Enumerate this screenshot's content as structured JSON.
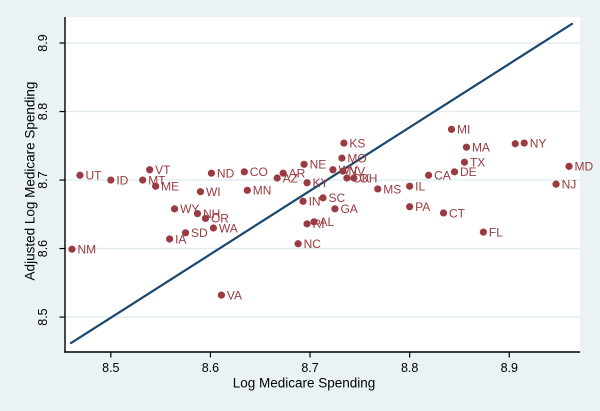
{
  "figure": {
    "background": "#eaf2f3",
    "plot_background": "#ffffff"
  },
  "chart_data": {
    "type": "scatter",
    "title": "",
    "xlabel": "Log Medicare Spending",
    "ylabel": "Adjusted Log Medicare Spending",
    "xlim": [
      8.454,
      8.971
    ],
    "ylim": [
      8.449,
      8.938
    ],
    "xticks": [
      8.5,
      8.6,
      8.7,
      8.8,
      8.9
    ],
    "yticks": [
      8.5,
      8.6,
      8.7,
      8.8,
      8.9
    ],
    "grid": "horizontal",
    "legend": "none",
    "marker_color": "#9a3b41",
    "line_color": "#1a476f",
    "grid_color": "#e1edf2",
    "axis_color": "#000000",
    "reference_line": {
      "name": "45-degree line",
      "x1": 8.46,
      "y1": 8.462,
      "x2": 8.963,
      "y2": 8.928
    },
    "points": [
      {
        "label": "UT",
        "x": 8.469,
        "y": 8.707
      },
      {
        "label": "NM",
        "x": 8.461,
        "y": 8.599
      },
      {
        "label": "ID",
        "x": 8.5,
        "y": 8.7
      },
      {
        "label": "VT",
        "x": 8.539,
        "y": 8.715
      },
      {
        "label": "MT",
        "x": 8.532,
        "y": 8.7
      },
      {
        "label": "ME",
        "x": 8.545,
        "y": 8.691
      },
      {
        "label": "WY",
        "x": 8.564,
        "y": 8.658
      },
      {
        "label": "NH",
        "x": 8.587,
        "y": 8.651
      },
      {
        "label": "OR",
        "x": 8.595,
        "y": 8.644
      },
      {
        "label": "WA",
        "x": 8.603,
        "y": 8.63
      },
      {
        "label": "SD",
        "x": 8.575,
        "y": 8.623
      },
      {
        "label": "IA",
        "x": 8.559,
        "y": 8.614
      },
      {
        "label": "VA",
        "x": 8.611,
        "y": 8.532
      },
      {
        "label": "ND",
        "x": 8.601,
        "y": 8.71
      },
      {
        "label": "CO",
        "x": 8.634,
        "y": 8.712
      },
      {
        "label": "WI",
        "x": 8.59,
        "y": 8.683
      },
      {
        "label": "MN",
        "x": 8.637,
        "y": 8.685
      },
      {
        "label": "AZ",
        "x": 8.667,
        "y": 8.703
      },
      {
        "label": "AR",
        "x": 8.673,
        "y": 8.71
      },
      {
        "label": "NC",
        "x": 8.688,
        "y": 8.607
      },
      {
        "label": "RI",
        "x": 8.697,
        "y": 8.636
      },
      {
        "label": "AL",
        "x": 8.704,
        "y": 8.639
      },
      {
        "label": "IN",
        "x": 8.693,
        "y": 8.669
      },
      {
        "label": "SC",
        "x": 8.713,
        "y": 8.674
      },
      {
        "label": "GA",
        "x": 8.725,
        "y": 8.658
      },
      {
        "label": "KY",
        "x": 8.697,
        "y": 8.696
      },
      {
        "label": "NE",
        "x": 8.694,
        "y": 8.723
      },
      {
        "label": "MO",
        "x": 8.732,
        "y": 8.732
      },
      {
        "label": "KS",
        "x": 8.734,
        "y": 8.754
      },
      {
        "label": "WV",
        "x": 8.723,
        "y": 8.715
      },
      {
        "label": "NV",
        "x": 8.733,
        "y": 8.713
      },
      {
        "label": "OK",
        "x": 8.737,
        "y": 8.703
      },
      {
        "label": "OH",
        "x": 8.744,
        "y": 8.703
      },
      {
        "label": "MS",
        "x": 8.768,
        "y": 8.687
      },
      {
        "label": "IL",
        "x": 8.8,
        "y": 8.691
      },
      {
        "label": "PA",
        "x": 8.8,
        "y": 8.661
      },
      {
        "label": "CT",
        "x": 8.834,
        "y": 8.652
      },
      {
        "label": "FL",
        "x": 8.874,
        "y": 8.624
      },
      {
        "label": "CA",
        "x": 8.819,
        "y": 8.707
      },
      {
        "label": "DE",
        "x": 8.845,
        "y": 8.712
      },
      {
        "label": "MI",
        "x": 8.842,
        "y": 8.774
      },
      {
        "label": "MA",
        "x": 8.857,
        "y": 8.748
      },
      {
        "label": "TX",
        "x": 8.855,
        "y": 8.726
      },
      {
        "label": "",
        "x": 8.906,
        "y": 8.753
      },
      {
        "label": "NY",
        "x": 8.915,
        "y": 8.754
      },
      {
        "label": "MD",
        "x": 8.96,
        "y": 8.72
      },
      {
        "label": "NJ",
        "x": 8.947,
        "y": 8.694
      }
    ]
  }
}
